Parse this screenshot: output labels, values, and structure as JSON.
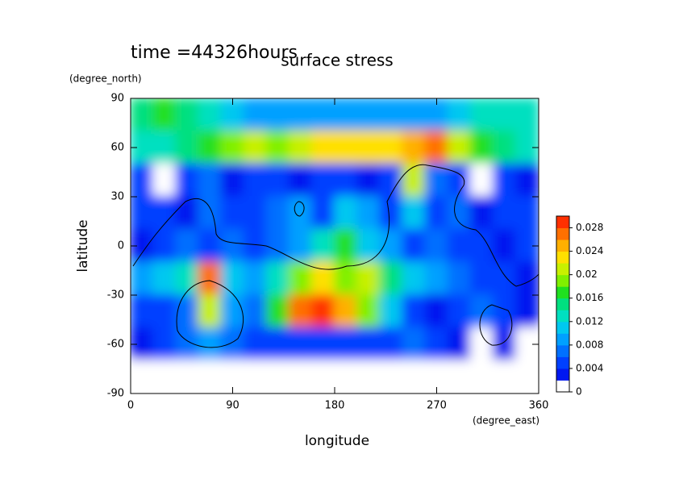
{
  "chart_data": {
    "type": "contour",
    "title": "surface stress",
    "subtitle": "time =44326hours",
    "x_label": "longitude",
    "x_unit": "(degree_east)",
    "y_label": "latitude",
    "y_unit": "(degree_north)",
    "xlim": [
      0,
      360
    ],
    "xticks": [
      0,
      90,
      180,
      270,
      360
    ],
    "ylim": [
      -90,
      90
    ],
    "yticks": [
      -90,
      -60,
      -30,
      0,
      30,
      60,
      90
    ],
    "lon": [
      10,
      30,
      50,
      70,
      90,
      110,
      130,
      150,
      170,
      190,
      210,
      230,
      250,
      270,
      290,
      310,
      330,
      350
    ],
    "lat": [
      80,
      60,
      40,
      20,
      0,
      -20,
      -40,
      -60,
      -80
    ],
    "z": [
      [
        0.014,
        0.016,
        0.014,
        0.012,
        0.01,
        0.008,
        0.008,
        0.008,
        0.008,
        0.008,
        0.008,
        0.008,
        0.008,
        0.008,
        0.01,
        0.012,
        0.012,
        0.012
      ],
      [
        0.012,
        0.012,
        0.014,
        0.016,
        0.018,
        0.02,
        0.018,
        0.02,
        0.022,
        0.022,
        0.022,
        0.022,
        0.024,
        0.026,
        0.02,
        0.016,
        0.014,
        0.012
      ],
      [
        0.004,
        0,
        0.004,
        0.006,
        0.002,
        0.004,
        0.004,
        0.002,
        0.004,
        0.004,
        0.002,
        0.004,
        0.02,
        0.006,
        0.004,
        0,
        0.004,
        0.002
      ],
      [
        0.004,
        0.004,
        0.002,
        0.006,
        0.004,
        0.004,
        0.006,
        0.008,
        0.004,
        0.01,
        0.008,
        0.004,
        0.01,
        0.004,
        0.006,
        0.002,
        0.004,
        0.004
      ],
      [
        0.002,
        0.004,
        0.006,
        0.004,
        0.006,
        0.004,
        0.006,
        0.008,
        0.012,
        0.016,
        0.01,
        0.008,
        0.004,
        0.006,
        0.004,
        0.004,
        0.002,
        0.004
      ],
      [
        0.008,
        0.01,
        0.012,
        0.026,
        0.01,
        0.008,
        0.012,
        0.018,
        0.022,
        0.018,
        0.02,
        0.014,
        0.01,
        0.008,
        0.006,
        0.004,
        0.004,
        0.002
      ],
      [
        0.004,
        0.004,
        0.006,
        0.02,
        0.008,
        0.006,
        0.016,
        0.026,
        0.028,
        0.024,
        0.018,
        0.01,
        0.004,
        0.002,
        0.004,
        0.006,
        0.004,
        0.002
      ],
      [
        0.002,
        0.004,
        0.006,
        0.008,
        0.006,
        0.004,
        0.004,
        0.004,
        0.004,
        0.004,
        0.004,
        0.004,
        0.006,
        0.004,
        0.002,
        0,
        0.002,
        0
      ],
      [
        0,
        0,
        0,
        0,
        0,
        0,
        0,
        0,
        0,
        0,
        0,
        0,
        0,
        0,
        0,
        0,
        0,
        0
      ]
    ],
    "zlim": [
      0,
      0.03
    ],
    "zticks": [
      0,
      0.004,
      0.008,
      0.012,
      0.016,
      0.02,
      0.024,
      0.028
    ],
    "colors": [
      "#ffffff",
      "#0018f0",
      "#0040ff",
      "#0070ff",
      "#00a0ff",
      "#00c8f0",
      "#00e0c0",
      "#00e080",
      "#20e020",
      "#80f000",
      "#c8f000",
      "#ffe000",
      "#ffb000",
      "#ff7000",
      "#ff3000"
    ]
  }
}
